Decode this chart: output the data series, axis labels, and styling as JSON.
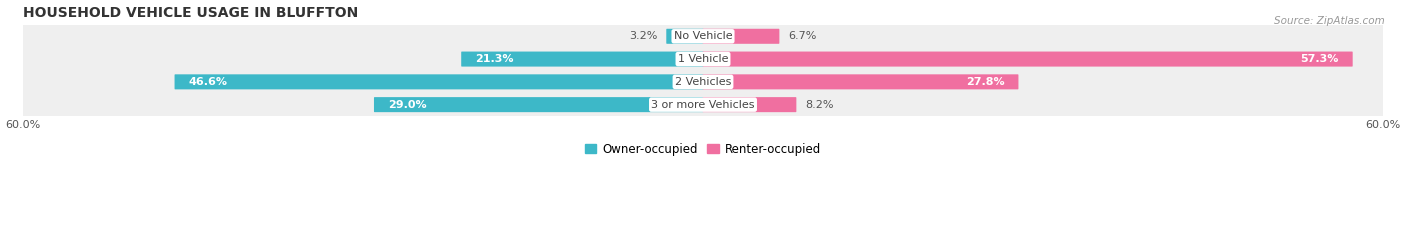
{
  "title": "HOUSEHOLD VEHICLE USAGE IN BLUFFTON",
  "source": "Source: ZipAtlas.com",
  "categories": [
    "No Vehicle",
    "1 Vehicle",
    "2 Vehicles",
    "3 or more Vehicles"
  ],
  "owner_values": [
    3.2,
    21.3,
    46.6,
    29.0
  ],
  "renter_values": [
    6.7,
    57.3,
    27.8,
    8.2
  ],
  "owner_color": "#3db8c8",
  "renter_color": "#f06fa0",
  "row_bg_color": "#efefef",
  "axis_max": 60.0,
  "bar_height": 0.58,
  "title_fontsize": 10,
  "label_fontsize": 8,
  "tick_fontsize": 8,
  "source_fontsize": 7.5,
  "legend_fontsize": 8.5,
  "category_fontsize": 8,
  "background_color": "#ffffff"
}
